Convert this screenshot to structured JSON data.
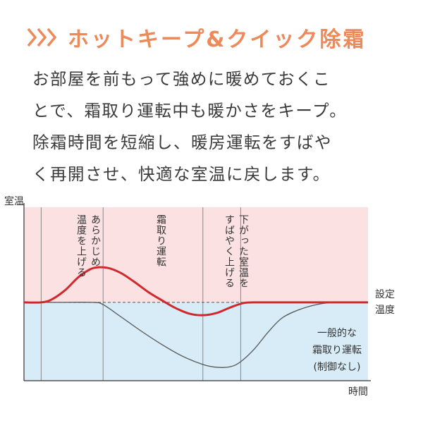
{
  "header": {
    "title": "ホットキープ&クイック除霜",
    "accent_color": "#ec8a5a",
    "icon": "triple-chevron-right-icon"
  },
  "description": {
    "lines": [
      "お部屋を前もって強めに暖めておくこ",
      "とで、霜取り運転中も暖かさをキープ。",
      "除霜時間を短縮し、暖房運転をすばや",
      "く再開させ、快適な室温に戻します。"
    ]
  },
  "chart_data": {
    "type": "line",
    "ylabel": "室温",
    "xlabel": "時間",
    "set_temp_label": [
      "設定",
      "温度"
    ],
    "phases": [
      {
        "name": "preheat",
        "label_lines": [
          "あらかじめ",
          "温度を上げる"
        ]
      },
      {
        "name": "defrost",
        "label_lines": [
          "霜取り運転"
        ]
      },
      {
        "name": "recovery",
        "label_lines": [
          "下がった室温を",
          "すばやく上げる"
        ]
      }
    ],
    "series": [
      {
        "name": "",
        "color": "#d0292d",
        "x": [
          0,
          5,
          8,
          12,
          16,
          20,
          24,
          28,
          32,
          36,
          40,
          44,
          48,
          52,
          56,
          60,
          64,
          68,
          72,
          80,
          90,
          100
        ],
        "y": [
          0,
          0,
          0.5,
          2.2,
          4.6,
          6.1,
          6.2,
          5.3,
          3.7,
          1.9,
          0.4,
          -1.0,
          -2.0,
          -2.3,
          -1.9,
          -0.9,
          -0.1,
          0,
          0,
          0,
          0,
          0
        ]
      },
      {
        "name": "一般的な霜取り運転(制御なし)",
        "label_lines": [
          "一般的な",
          "霜取り運転",
          "(制御なし)"
        ],
        "color": "#555555",
        "x": [
          0,
          10,
          20,
          23,
          28,
          34,
          40,
          46,
          52,
          56,
          60,
          63,
          67,
          71,
          75,
          80,
          85,
          90,
          95,
          100
        ],
        "y": [
          0,
          0,
          0,
          -0.4,
          -2.5,
          -5.1,
          -7.5,
          -9.6,
          -11.1,
          -11.6,
          -11.5,
          -10.6,
          -8.3,
          -5.3,
          -2.8,
          -1.3,
          -0.4,
          0,
          0,
          0
        ]
      }
    ],
    "set_temperature": 0,
    "xlim": [
      0,
      100
    ],
    "ylim": [
      -14,
      17
    ],
    "phase_boundaries": [
      5,
      23,
      52,
      63
    ],
    "colors": {
      "warm_zone": "#fbe1e1",
      "cool_zone": "#d8ecf7",
      "axis": "#333333",
      "guide": "#8a8a8a"
    }
  }
}
